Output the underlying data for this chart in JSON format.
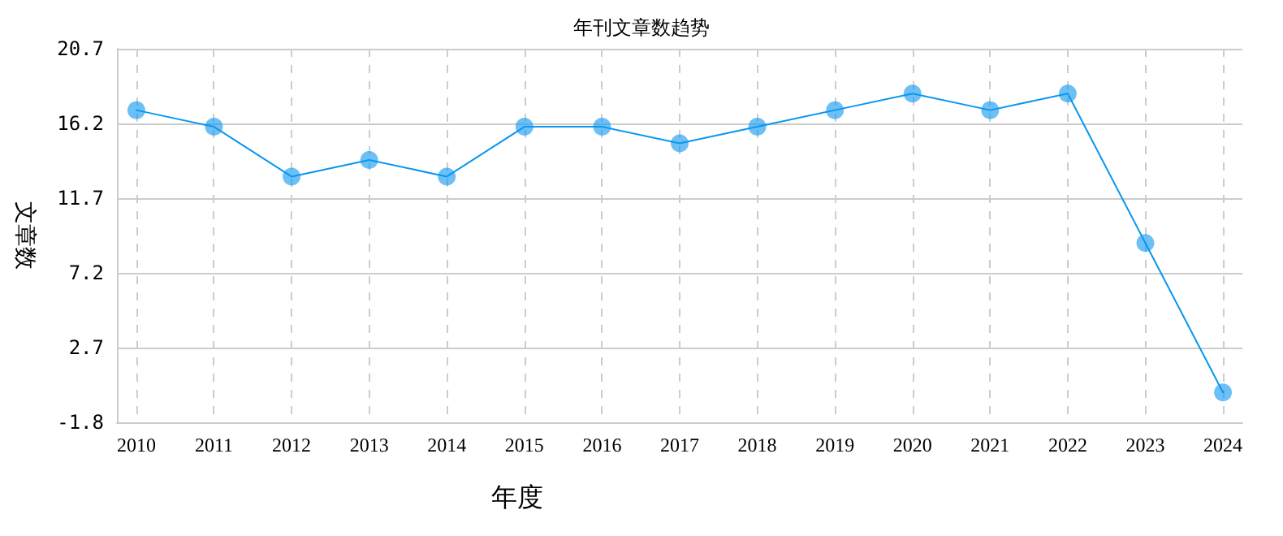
{
  "chart_data": {
    "type": "line",
    "title": "年刊文章数趋势",
    "xlabel": "年度",
    "ylabel": "文章数",
    "x": [
      2010,
      2011,
      2012,
      2013,
      2014,
      2015,
      2016,
      2017,
      2018,
      2019,
      2020,
      2021,
      2022,
      2023,
      2024
    ],
    "series": [
      {
        "color": "#0a96f0",
        "values": [
          17,
          16,
          13,
          14,
          13,
          16,
          16,
          15,
          16,
          17,
          18,
          17,
          18,
          9,
          0
        ]
      }
    ],
    "xlim": [
      2009.75,
      2024.25
    ],
    "xticks": [
      2010,
      2011,
      2012,
      2013,
      2014,
      2015,
      2016,
      2017,
      2018,
      2019,
      2020,
      2021,
      2022,
      2023,
      2024
    ],
    "ylim": [
      -1.8,
      20.7
    ],
    "yticks": [
      -1.8,
      2.7,
      7.2,
      11.7,
      16.2,
      20.7
    ],
    "grid": true,
    "marker": "circle",
    "line_style": "solid"
  }
}
